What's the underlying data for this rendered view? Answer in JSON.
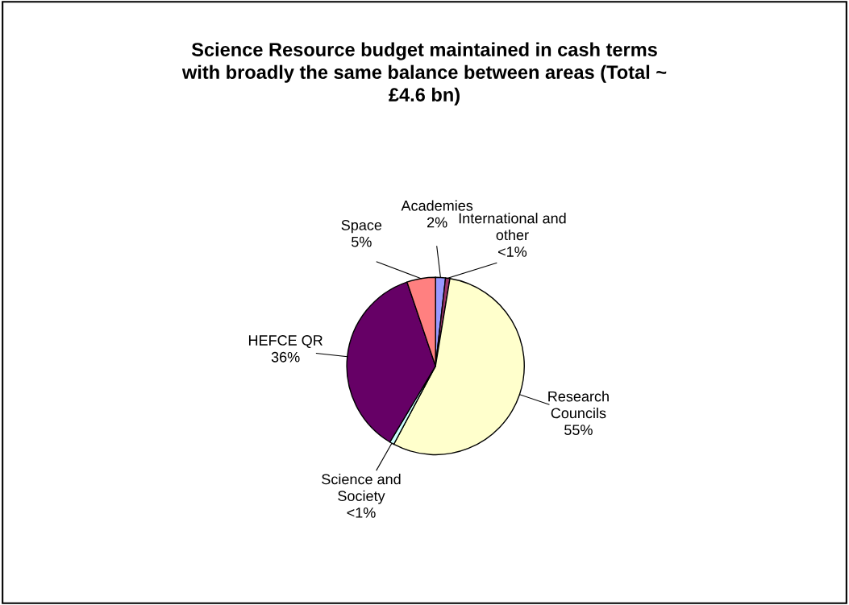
{
  "chart_data": {
    "type": "pie",
    "title": "Science Resource budget maintained in cash terms\nwith broadly the same balance between areas (Total ~\n£4.6 bn)",
    "categories": [
      "Academies",
      "International and\nother",
      "Research\nCouncils",
      "Science and\nSociety",
      "HEFCE QR",
      "Space"
    ],
    "values": [
      1.8,
      0.8,
      55.2,
      0.8,
      36.2,
      5.2
    ],
    "value_labels": [
      "2%",
      "<1%",
      "55%",
      "<1%",
      "36%",
      "5%"
    ],
    "colors": [
      "#9999ff",
      "#993366",
      "#ffffcc",
      "#ccffff",
      "#660066",
      "#ff8080"
    ]
  }
}
